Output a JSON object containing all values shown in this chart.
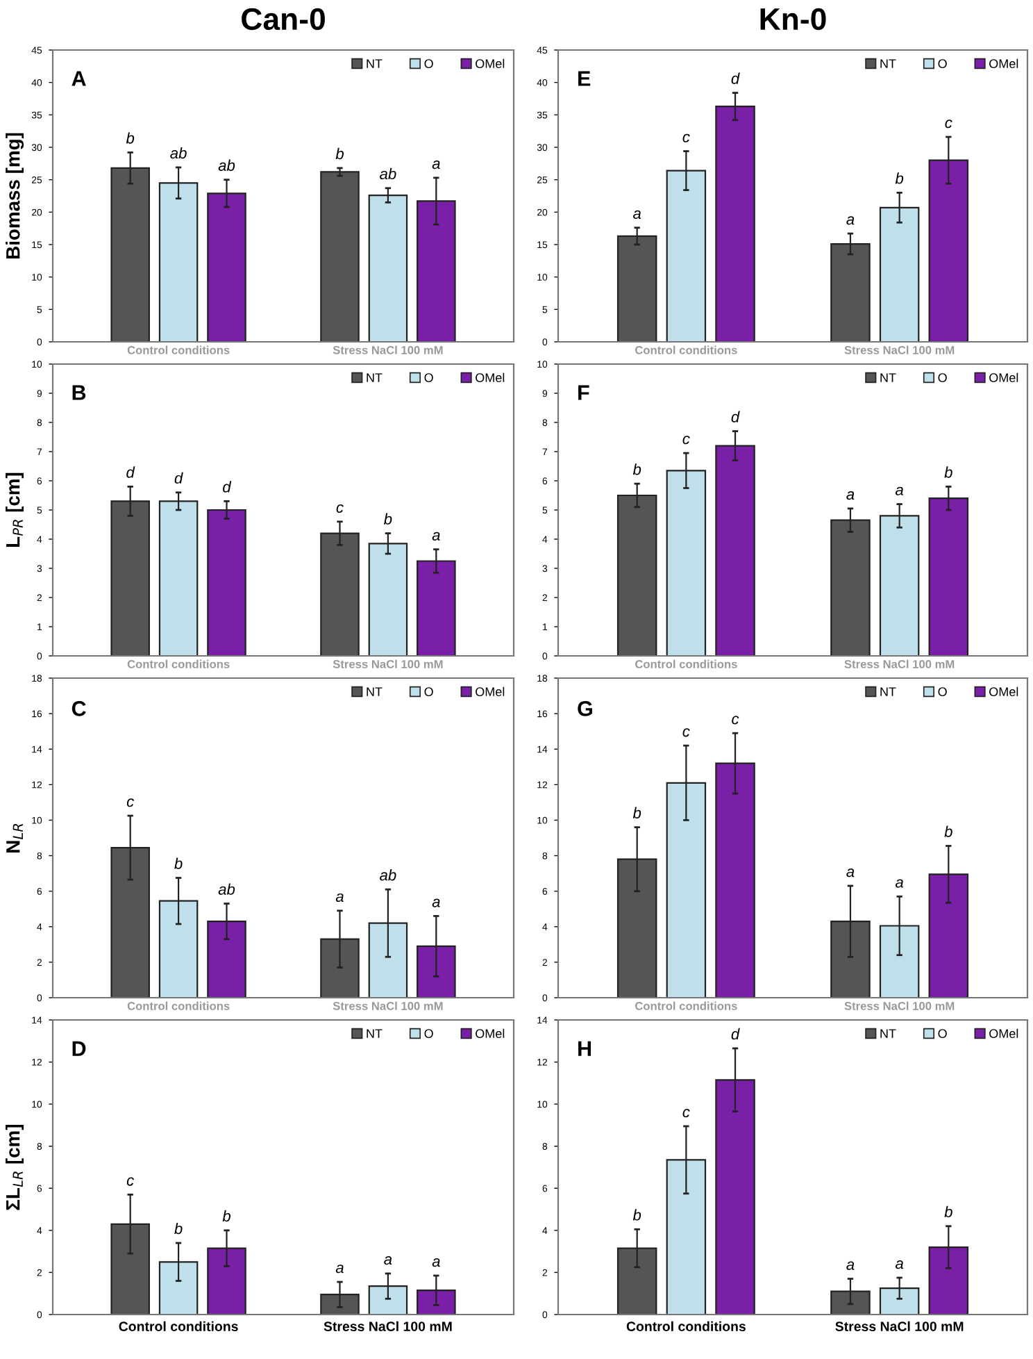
{
  "chart_data": [
    {
      "type": "bar",
      "title": "Can-0",
      "ylabel": "Biomass [mg]",
      "annotations": [
        "A"
      ],
      "categories": [
        "Control conditions",
        "Stress NaCl 100 mM"
      ],
      "ylim": [
        0,
        45
      ],
      "yticks": [
        0,
        5,
        10,
        15,
        20,
        25,
        30,
        35,
        40,
        45
      ],
      "legend": "top right",
      "grid": false,
      "series": [
        {
          "name": "NT",
          "color": "#555555",
          "values": [
            26.8,
            26.2
          ],
          "errors": [
            2.4,
            0.6
          ],
          "value_labels": [
            "b",
            "b"
          ]
        },
        {
          "name": "O",
          "color": "#bfe0ea",
          "values": [
            24.5,
            22.6
          ],
          "errors": [
            2.4,
            1.1
          ],
          "value_labels": [
            "ab",
            "ab"
          ]
        },
        {
          "name": "OMel",
          "color": "#7a1fa8",
          "values": [
            22.9,
            21.7
          ],
          "errors": [
            2.1,
            3.6
          ],
          "value_labels": [
            "ab",
            "a"
          ]
        }
      ]
    },
    {
      "type": "bar",
      "ylabel": "L$_{PR}$ [cm]",
      "annotations": [
        "B"
      ],
      "categories": [
        "Control conditions",
        "Stress NaCl 100 mM"
      ],
      "ylim": [
        0,
        10
      ],
      "yticks": [
        0,
        1,
        2,
        3,
        4,
        5,
        6,
        7,
        8,
        9,
        10
      ],
      "legend": "top right",
      "grid": false,
      "series": [
        {
          "name": "NT",
          "color": "#555555",
          "values": [
            5.3,
            4.2
          ],
          "errors": [
            0.5,
            0.4
          ],
          "value_labels": [
            "d",
            "c"
          ]
        },
        {
          "name": "O",
          "color": "#bfe0ea",
          "values": [
            5.3,
            3.85
          ],
          "errors": [
            0.3,
            0.35
          ],
          "value_labels": [
            "d",
            "b"
          ]
        },
        {
          "name": "OMel",
          "color": "#7a1fa8",
          "values": [
            5.0,
            3.25
          ],
          "errors": [
            0.3,
            0.4
          ],
          "value_labels": [
            "d",
            "a"
          ]
        }
      ]
    },
    {
      "type": "bar",
      "ylabel": "N$_{LR}$",
      "annotations": [
        "C"
      ],
      "categories": [
        "Control conditions",
        "Stress NaCl 100 mM"
      ],
      "ylim": [
        0,
        18
      ],
      "yticks": [
        0,
        2,
        4,
        6,
        8,
        10,
        12,
        14,
        16,
        18
      ],
      "legend": "top right",
      "grid": false,
      "series": [
        {
          "name": "NT",
          "color": "#555555",
          "values": [
            8.45,
            3.3
          ],
          "errors": [
            1.8,
            1.6
          ],
          "value_labels": [
            "c",
            "a"
          ]
        },
        {
          "name": "O",
          "color": "#bfe0ea",
          "values": [
            5.45,
            4.2
          ],
          "errors": [
            1.3,
            1.9
          ],
          "value_labels": [
            "b",
            "ab"
          ]
        },
        {
          "name": "OMel",
          "color": "#7a1fa8",
          "values": [
            4.3,
            2.9
          ],
          "errors": [
            1.0,
            1.7
          ],
          "value_labels": [
            "ab",
            "a"
          ]
        }
      ]
    },
    {
      "type": "bar",
      "ylabel": "ΣL$_{LR}$ [cm]",
      "annotations": [
        "D"
      ],
      "categories": [
        "Control conditions",
        "Stress NaCl 100 mM"
      ],
      "ylim": [
        0,
        14
      ],
      "yticks": [
        0,
        2,
        4,
        6,
        8,
        10,
        12,
        14
      ],
      "legend": "top right",
      "grid": false,
      "series": [
        {
          "name": "NT",
          "color": "#555555",
          "values": [
            4.3,
            0.95
          ],
          "errors": [
            1.4,
            0.6
          ],
          "value_labels": [
            "c",
            "a"
          ]
        },
        {
          "name": "O",
          "color": "#bfe0ea",
          "values": [
            2.5,
            1.35
          ],
          "errors": [
            0.9,
            0.6
          ],
          "value_labels": [
            "b",
            "a"
          ]
        },
        {
          "name": "OMel",
          "color": "#7a1fa8",
          "values": [
            3.15,
            1.15
          ],
          "errors": [
            0.85,
            0.7
          ],
          "value_labels": [
            "b",
            "a"
          ]
        }
      ]
    },
    {
      "type": "bar",
      "title": "Kn-0",
      "annotations": [
        "E"
      ],
      "categories": [
        "Control conditions",
        "Stress NaCl 100 mM"
      ],
      "ylim": [
        0,
        45
      ],
      "yticks": [
        0,
        5,
        10,
        15,
        20,
        25,
        30,
        35,
        40,
        45
      ],
      "legend": "top right",
      "grid": false,
      "series": [
        {
          "name": "NT",
          "color": "#555555",
          "values": [
            16.3,
            15.1
          ],
          "errors": [
            1.3,
            1.6
          ],
          "value_labels": [
            "a",
            "a"
          ]
        },
        {
          "name": "O",
          "color": "#bfe0ea",
          "values": [
            26.4,
            20.7
          ],
          "errors": [
            3.0,
            2.3
          ],
          "value_labels": [
            "c",
            "b"
          ]
        },
        {
          "name": "OMel",
          "color": "#7a1fa8",
          "values": [
            36.3,
            28.0
          ],
          "errors": [
            2.1,
            3.6
          ],
          "value_labels": [
            "d",
            "c"
          ]
        }
      ]
    },
    {
      "type": "bar",
      "annotations": [
        "F"
      ],
      "categories": [
        "Control conditions",
        "Stress NaCl 100 mM"
      ],
      "ylim": [
        0,
        10
      ],
      "yticks": [
        0,
        1,
        2,
        3,
        4,
        5,
        6,
        7,
        8,
        9,
        10
      ],
      "legend": "top right",
      "grid": false,
      "series": [
        {
          "name": "NT",
          "color": "#555555",
          "values": [
            5.5,
            4.65
          ],
          "errors": [
            0.4,
            0.4
          ],
          "value_labels": [
            "b",
            "a"
          ]
        },
        {
          "name": "O",
          "color": "#bfe0ea",
          "values": [
            6.35,
            4.8
          ],
          "errors": [
            0.6,
            0.4
          ],
          "value_labels": [
            "c",
            "a"
          ]
        },
        {
          "name": "OMel",
          "color": "#7a1fa8",
          "values": [
            7.2,
            5.4
          ],
          "errors": [
            0.5,
            0.4
          ],
          "value_labels": [
            "d",
            "b"
          ]
        }
      ]
    },
    {
      "type": "bar",
      "annotations": [
        "G"
      ],
      "categories": [
        "Control conditions",
        "Stress NaCl 100 mM"
      ],
      "ylim": [
        0,
        18
      ],
      "yticks": [
        0,
        2,
        4,
        6,
        8,
        10,
        12,
        14,
        16,
        18
      ],
      "legend": "top right",
      "grid": false,
      "series": [
        {
          "name": "NT",
          "color": "#555555",
          "values": [
            7.8,
            4.3
          ],
          "errors": [
            1.8,
            2.0
          ],
          "value_labels": [
            "b",
            "a"
          ]
        },
        {
          "name": "O",
          "color": "#bfe0ea",
          "values": [
            12.1,
            4.05
          ],
          "errors": [
            2.1,
            1.65
          ],
          "value_labels": [
            "c",
            "a"
          ]
        },
        {
          "name": "OMel",
          "color": "#7a1fa8",
          "values": [
            13.2,
            6.95
          ],
          "errors": [
            1.7,
            1.6
          ],
          "value_labels": [
            "c",
            "b"
          ]
        }
      ]
    },
    {
      "type": "bar",
      "annotations": [
        "H"
      ],
      "categories": [
        "Control conditions",
        "Stress NaCl 100 mM"
      ],
      "ylim": [
        0,
        14
      ],
      "yticks": [
        0,
        2,
        4,
        6,
        8,
        10,
        12,
        14
      ],
      "legend": "top right",
      "grid": false,
      "series": [
        {
          "name": "NT",
          "color": "#555555",
          "values": [
            3.15,
            1.1
          ],
          "errors": [
            0.9,
            0.6
          ],
          "value_labels": [
            "b",
            "a"
          ]
        },
        {
          "name": "O",
          "color": "#bfe0ea",
          "values": [
            7.35,
            1.25
          ],
          "errors": [
            1.6,
            0.5
          ],
          "value_labels": [
            "c",
            "a"
          ]
        },
        {
          "name": "OMel",
          "color": "#7a1fa8",
          "values": [
            11.15,
            3.2
          ],
          "errors": [
            1.5,
            1.0
          ],
          "value_labels": [
            "d",
            "b"
          ]
        }
      ]
    }
  ]
}
